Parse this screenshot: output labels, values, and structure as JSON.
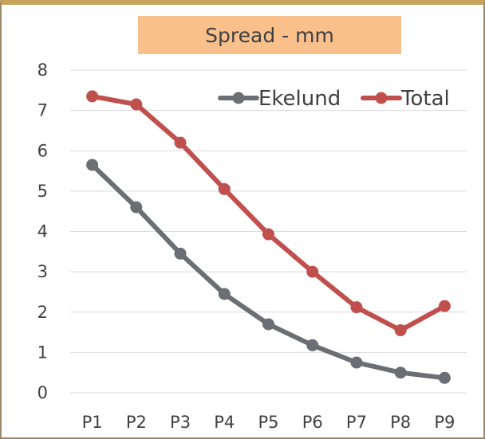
{
  "chart_data": {
    "type": "line",
    "title": "Spread - mm",
    "categories": [
      "P1",
      "P2",
      "P3",
      "P4",
      "P5",
      "P6",
      "P7",
      "P8",
      "P9"
    ],
    "series": [
      {
        "name": "Ekelund",
        "color": "#6b6e72",
        "values": [
          5.65,
          4.6,
          3.45,
          2.45,
          1.7,
          1.18,
          0.75,
          0.5,
          0.37
        ]
      },
      {
        "name": "Total",
        "color": "#c0504d",
        "values": [
          7.35,
          7.15,
          6.2,
          5.05,
          3.93,
          3.0,
          2.12,
          1.55,
          2.15
        ]
      }
    ],
    "ylim": [
      0,
      8
    ],
    "yticks": [
      "0",
      "1",
      "2",
      "3",
      "4",
      "5",
      "6",
      "7",
      "8"
    ],
    "grid": true,
    "legend_position": "top-right"
  },
  "colors": {
    "title_background": "#f9c08c",
    "frame_top": "#c8a35a"
  }
}
